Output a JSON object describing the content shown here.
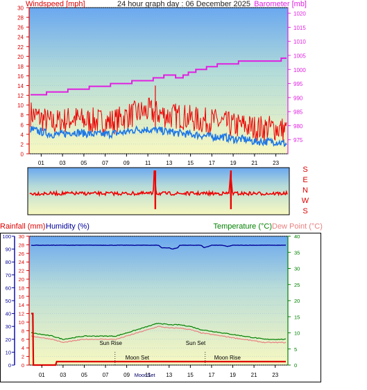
{
  "header": {
    "title": "24 hour graph day : 06 December 2025",
    "wind_label": "Windspeed [mph]",
    "baro_label": "Barometer [mb]"
  },
  "bottom_labels": {
    "rain": "Rainfall (mm)",
    "humidity": "Humidity (%)",
    "temperature": "Temperature (°C)",
    "dewpoint": "Dew Point (°C)"
  },
  "colors": {
    "wind_avg": "#1e78e6",
    "wind_gust": "#ee0000",
    "barometer": "#e020e0",
    "humidity": "#000099",
    "temperature": "#008000",
    "dewpoint": "#e88080",
    "rain": "#dd0000"
  },
  "chart_data": [
    {
      "type": "line",
      "title": "24 hour graph day : 06 December 2025",
      "x_ticks": [
        "01",
        "03",
        "05",
        "07",
        "09",
        "11",
        "13",
        "15",
        "17",
        "19",
        "21",
        "23"
      ],
      "x_hours": [
        0,
        24
      ],
      "y_left": {
        "label": "Windspeed [mph]",
        "ticks": [
          0,
          2,
          4,
          6,
          8,
          10,
          12,
          14,
          16,
          18,
          20,
          22,
          24,
          26,
          28,
          30
        ],
        "range": [
          0,
          30
        ]
      },
      "y_right": {
        "label": "Barometer [mb]",
        "ticks": [
          975,
          980,
          985,
          990,
          995,
          1000,
          1005,
          1010,
          1015,
          1020
        ],
        "range": [
          970,
          1022
        ]
      },
      "series": [
        {
          "key": "gust",
          "axis": "left",
          "x": [
            0,
            1,
            2,
            3,
            4,
            5,
            6,
            7,
            8,
            9,
            10,
            11,
            12,
            13,
            14,
            15,
            16,
            17,
            18,
            19,
            20,
            21,
            22,
            23,
            24
          ],
          "values": [
            8,
            7,
            6,
            6.5,
            7,
            6.5,
            6.5,
            6.2,
            6.5,
            7.5,
            8,
            8.5,
            8,
            7.5,
            7.5,
            7,
            6.5,
            6.5,
            6,
            5.5,
            5.5,
            5,
            5,
            5,
            4.5
          ]
        },
        {
          "key": "avg",
          "axis": "left",
          "x": [
            0,
            1,
            2,
            3,
            4,
            5,
            6,
            7,
            8,
            9,
            10,
            11,
            12,
            13,
            14,
            15,
            16,
            17,
            18,
            19,
            20,
            21,
            22,
            23,
            24
          ],
          "values": [
            5,
            4.5,
            4,
            4,
            4.5,
            4.2,
            4,
            4,
            4.2,
            4.5,
            5,
            5,
            4.8,
            4.5,
            4.2,
            4,
            3.8,
            3.5,
            3.5,
            3,
            3,
            2.5,
            2.5,
            2.5,
            2
          ]
        },
        {
          "key": "barometer",
          "axis": "right",
          "x": [
            0,
            1,
            2,
            3,
            4,
            5,
            6,
            7,
            8,
            9,
            10,
            11,
            12,
            13,
            14,
            15,
            16,
            17,
            18,
            19,
            20,
            21,
            22,
            23,
            24
          ],
          "values": [
            991,
            991,
            992,
            992,
            993,
            993,
            994,
            994,
            995,
            995,
            996,
            996,
            997,
            998,
            997,
            999,
            1000,
            1001,
            1002,
            1002,
            1003,
            1003,
            1003,
            1003,
            1004
          ]
        }
      ]
    },
    {
      "type": "line",
      "y_ticks": [
        "S",
        "E",
        "N",
        "W",
        "S"
      ],
      "series": [
        {
          "key": "direction",
          "x": [
            0,
            11.5,
            11.6,
            11.8,
            18.6,
            18.7,
            18.9,
            24
          ],
          "values": [
            200,
            200,
            0,
            200,
            200,
            0,
            200,
            200
          ]
        }
      ]
    },
    {
      "type": "line",
      "x_ticks": [
        "01",
        "03",
        "05",
        "07",
        "09",
        "11",
        "13",
        "15",
        "17",
        "19",
        "21",
        "23"
      ],
      "x_hours": [
        0,
        24
      ],
      "y_rain": {
        "label": "Rainfall (mm)",
        "ticks": [
          0,
          2,
          4,
          6,
          8,
          10,
          12,
          14,
          16,
          18,
          20,
          22,
          24,
          26,
          28,
          30
        ],
        "range": [
          0,
          30
        ]
      },
      "y_humidity": {
        "label": "Humidity (%)",
        "ticks": [
          0,
          10,
          20,
          30,
          40,
          50,
          60,
          70,
          80,
          90,
          100
        ],
        "range": [
          0,
          100
        ]
      },
      "y_temp": {
        "label": "Temperature (°C)",
        "ticks": [
          0,
          5,
          10,
          15,
          20,
          25,
          30,
          35,
          40
        ],
        "range": [
          0,
          40
        ]
      },
      "series": [
        {
          "key": "humidity",
          "axis": "humidity",
          "x": [
            0,
            12,
            12.3,
            13,
            13.3,
            13.8,
            14,
            15,
            16,
            16.3,
            17,
            18,
            18.5,
            19,
            24
          ],
          "values": [
            93,
            93,
            91,
            91,
            90,
            91,
            93,
            93,
            93,
            91,
            93,
            93,
            92,
            93,
            93
          ]
        },
        {
          "key": "temperature",
          "axis": "temp",
          "x": [
            0,
            1,
            2,
            3,
            4,
            5,
            6,
            7,
            8,
            9,
            10,
            11,
            12,
            13,
            14,
            15,
            16,
            17,
            18,
            19,
            20,
            21,
            22,
            23,
            24
          ],
          "values": [
            10,
            9.5,
            9,
            8,
            8.5,
            9,
            9,
            9,
            9,
            10,
            11,
            12,
            13,
            12.5,
            12.5,
            12,
            11,
            10.5,
            10,
            9.5,
            9,
            8.5,
            8,
            8,
            8
          ]
        },
        {
          "key": "dewpoint",
          "axis": "temp",
          "x": [
            0,
            1,
            2,
            3,
            4,
            5,
            6,
            7,
            8,
            9,
            10,
            11,
            12,
            13,
            14,
            15,
            16,
            17,
            18,
            19,
            20,
            21,
            22,
            23,
            24
          ],
          "values": [
            9,
            8.5,
            8,
            7,
            7.5,
            8,
            8,
            8,
            8,
            9,
            10,
            11,
            12,
            11.5,
            11.5,
            11,
            10,
            9.5,
            9,
            8.5,
            8,
            7.5,
            7,
            7,
            7
          ]
        },
        {
          "key": "rain",
          "axis": "rain",
          "x": [
            0,
            0.15,
            0.2,
            2.3,
            2.4,
            24
          ],
          "values": [
            12,
            12,
            0,
            0,
            0.8,
            0.8
          ]
        }
      ],
      "annotations": [
        {
          "text": "Sun Rise",
          "hour": 7.5,
          "row": "upper"
        },
        {
          "text": "Sun Set",
          "hour": 15.5,
          "row": "upper"
        },
        {
          "text": "Moon Set",
          "hour": 10,
          "row": "lower"
        },
        {
          "text": "Moon Rise",
          "hour": 18.5,
          "row": "lower"
        }
      ],
      "x_extra_label": {
        "text": "MoonSet",
        "hour": 10.7
      }
    }
  ]
}
